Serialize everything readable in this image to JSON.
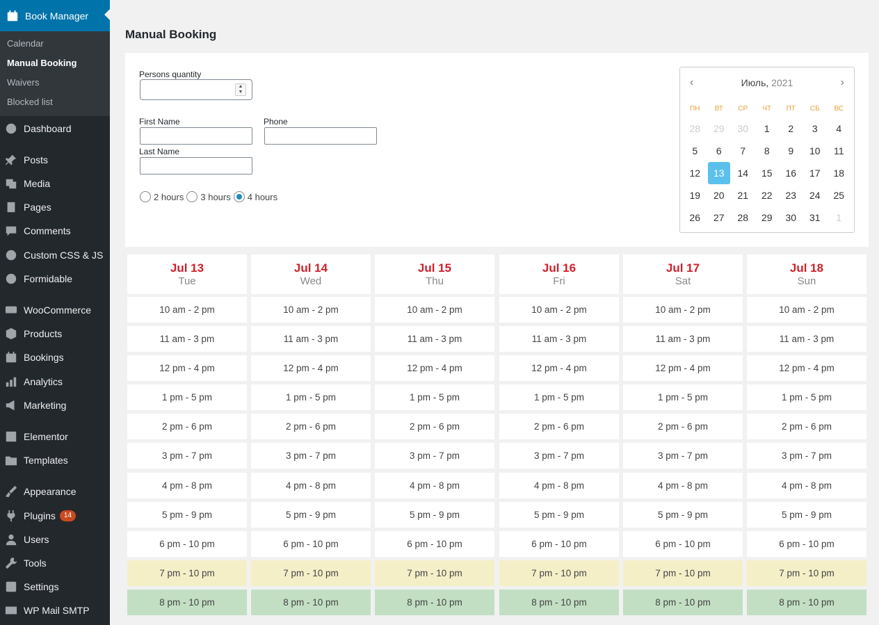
{
  "sidebar": {
    "top": {
      "label": "Book Manager",
      "icon": "calendar-icon"
    },
    "submenu": [
      {
        "label": "Calendar"
      },
      {
        "label": "Manual Booking",
        "current": true
      },
      {
        "label": "Waivers"
      },
      {
        "label": "Blocked list"
      }
    ],
    "items": [
      {
        "label": "Dashboard",
        "icon": "dashboard-icon"
      },
      {
        "label": "Posts",
        "icon": "pin-icon"
      },
      {
        "label": "Media",
        "icon": "media-icon"
      },
      {
        "label": "Pages",
        "icon": "pages-icon"
      },
      {
        "label": "Comments",
        "icon": "comment-icon"
      },
      {
        "label": "Custom CSS & JS",
        "icon": "plus-circle-icon"
      },
      {
        "label": "Formidable",
        "icon": "formidable-icon"
      },
      {
        "label": "WooCommerce",
        "icon": "woo-icon"
      },
      {
        "label": "Products",
        "icon": "box-icon"
      },
      {
        "label": "Bookings",
        "icon": "calendar-icon"
      },
      {
        "label": "Analytics",
        "icon": "bar-chart-icon"
      },
      {
        "label": "Marketing",
        "icon": "megaphone-icon"
      },
      {
        "label": "Elementor",
        "icon": "elementor-icon"
      },
      {
        "label": "Templates",
        "icon": "folder-icon"
      },
      {
        "label": "Appearance",
        "icon": "brush-icon"
      },
      {
        "label": "Plugins",
        "icon": "plug-icon",
        "badge": "14"
      },
      {
        "label": "Users",
        "icon": "user-icon"
      },
      {
        "label": "Tools",
        "icon": "wrench-icon"
      },
      {
        "label": "Settings",
        "icon": "settings-icon"
      },
      {
        "label": "WP Mail SMTP",
        "icon": "mail-icon"
      }
    ]
  },
  "page": {
    "title": "Manual Booking"
  },
  "form": {
    "persons_label": "Persons quantity",
    "persons_value": "",
    "first_name_label": "First Name",
    "phone_label": "Phone",
    "last_name_label": "Last Name",
    "durations": [
      {
        "label": "2 hours",
        "checked": false
      },
      {
        "label": "3 hours",
        "checked": false
      },
      {
        "label": "4 hours",
        "checked": true
      }
    ]
  },
  "datepicker": {
    "month": "Июль,",
    "year": "2021",
    "weekdays": [
      "ПН",
      "ВТ",
      "СР",
      "ЧТ",
      "ПТ",
      "СБ",
      "ВС"
    ],
    "weeks": [
      [
        "28",
        "29",
        "30",
        "1",
        "2",
        "3",
        "4"
      ],
      [
        "5",
        "6",
        "7",
        "8",
        "9",
        "10",
        "11"
      ],
      [
        "12",
        "13",
        "14",
        "15",
        "16",
        "17",
        "18"
      ],
      [
        "19",
        "20",
        "21",
        "22",
        "23",
        "24",
        "25"
      ],
      [
        "26",
        "27",
        "28",
        "29",
        "30",
        "31",
        "1"
      ]
    ],
    "selected": "13"
  },
  "schedule": {
    "days": [
      {
        "date": "Jul 13",
        "weekday": "Tue"
      },
      {
        "date": "Jul 14",
        "weekday": "Wed"
      },
      {
        "date": "Jul 15",
        "weekday": "Thu"
      },
      {
        "date": "Jul 16",
        "weekday": "Fri"
      },
      {
        "date": "Jul 17",
        "weekday": "Sat"
      },
      {
        "date": "Jul 18",
        "weekday": "Sun"
      }
    ],
    "slots": [
      {
        "label": "10 am - 2 pm",
        "status": "available"
      },
      {
        "label": "11 am - 3 pm",
        "status": "available"
      },
      {
        "label": "12 pm - 4 pm",
        "status": "available"
      },
      {
        "label": "1 pm - 5 pm",
        "status": "available"
      },
      {
        "label": "2 pm - 6 pm",
        "status": "available"
      },
      {
        "label": "3 pm - 7 pm",
        "status": "available"
      },
      {
        "label": "4 pm - 8 pm",
        "status": "available"
      },
      {
        "label": "5 pm - 9 pm",
        "status": "available"
      },
      {
        "label": "6 pm - 10 pm",
        "status": "available"
      },
      {
        "label": "7 pm - 10 pm",
        "status": "yellow"
      },
      {
        "label": "8 pm - 10 pm",
        "status": "green"
      }
    ]
  },
  "colors": {
    "accent": "#0073aa",
    "date_red": "#d0202a",
    "slot_yellow": "#f5efc8",
    "slot_green": "#c2dfc3",
    "selected_day": "#5bc0eb"
  }
}
